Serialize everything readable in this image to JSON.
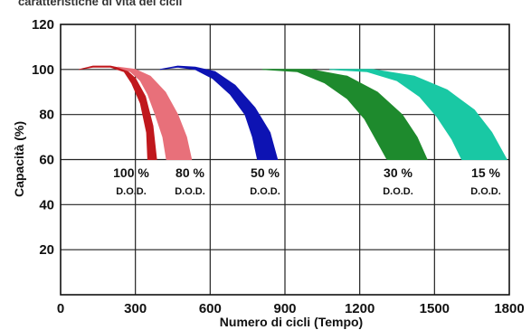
{
  "chart_data": {
    "type": "area",
    "title": "caratteristiche di vita dei cicli",
    "xlabel": "Numero di cicli  (Tempo)",
    "ylabel": "Capacità  (%)",
    "xlim": [
      0,
      1800
    ],
    "ylim": [
      0,
      120
    ],
    "x_ticks": [
      "0",
      "300",
      "600",
      "900",
      "1200",
      "1500",
      "1800"
    ],
    "y_ticks": [
      "20",
      "40",
      "60",
      "80",
      "100",
      "120"
    ],
    "grid": true,
    "series": [
      {
        "label": "100 %",
        "sublabel": "D.O.D.",
        "color": "#c0181d",
        "upper": [
          [
            75,
            100
          ],
          [
            130,
            101.5
          ],
          [
            200,
            101.5
          ],
          [
            260,
            100
          ],
          [
            300,
            96
          ],
          [
            340,
            88
          ],
          [
            370,
            75
          ],
          [
            385,
            60
          ]
        ],
        "lower": [
          [
            75,
            100
          ],
          [
            130,
            101
          ],
          [
            200,
            101
          ],
          [
            255,
            99
          ],
          [
            285,
            94
          ],
          [
            320,
            85
          ],
          [
            345,
            72
          ],
          [
            350,
            60
          ]
        ]
      },
      {
        "label": "80 %",
        "sublabel": "D.O.D.",
        "color": "#e8707a",
        "upper": [
          [
            230,
            101
          ],
          [
            300,
            100
          ],
          [
            360,
            97
          ],
          [
            420,
            90
          ],
          [
            470,
            80
          ],
          [
            505,
            70
          ],
          [
            525,
            60
          ]
        ],
        "lower": [
          [
            230,
            101
          ],
          [
            280,
            99
          ],
          [
            320,
            95
          ],
          [
            350,
            89
          ],
          [
            380,
            80
          ],
          [
            410,
            70
          ],
          [
            425,
            60
          ]
        ]
      },
      {
        "label": "50 %",
        "sublabel": "D.O.D.",
        "color": "#0d13b3",
        "upper": [
          [
            400,
            100
          ],
          [
            470,
            101.5
          ],
          [
            540,
            101
          ],
          [
            620,
            99
          ],
          [
            700,
            93
          ],
          [
            780,
            83
          ],
          [
            840,
            72
          ],
          [
            870,
            60
          ]
        ],
        "lower": [
          [
            400,
            100
          ],
          [
            470,
            101
          ],
          [
            540,
            100
          ],
          [
            610,
            96
          ],
          [
            680,
            89
          ],
          [
            740,
            80
          ],
          [
            770,
            70
          ],
          [
            790,
            60
          ]
        ]
      },
      {
        "label": "30 %",
        "sublabel": "D.O.D.",
        "color": "#1e8a2d",
        "upper": [
          [
            810,
            100
          ],
          [
            1000,
            100
          ],
          [
            1150,
            97
          ],
          [
            1270,
            90
          ],
          [
            1370,
            80
          ],
          [
            1430,
            70
          ],
          [
            1470,
            60
          ]
        ],
        "lower": [
          [
            810,
            100
          ],
          [
            950,
            99
          ],
          [
            1060,
            94
          ],
          [
            1150,
            87
          ],
          [
            1220,
            78
          ],
          [
            1270,
            68
          ],
          [
            1310,
            60
          ]
        ]
      },
      {
        "label": "15 %",
        "sublabel": "D.O.D.",
        "color": "#19c8a4",
        "upper": [
          [
            1080,
            100
          ],
          [
            1250,
            100
          ],
          [
            1420,
            97
          ],
          [
            1550,
            91
          ],
          [
            1660,
            82
          ],
          [
            1730,
            72
          ],
          [
            1790,
            60
          ]
        ],
        "lower": [
          [
            1080,
            100
          ],
          [
            1230,
            99
          ],
          [
            1350,
            95
          ],
          [
            1440,
            88
          ],
          [
            1510,
            79
          ],
          [
            1570,
            69
          ],
          [
            1610,
            60
          ]
        ]
      }
    ]
  }
}
